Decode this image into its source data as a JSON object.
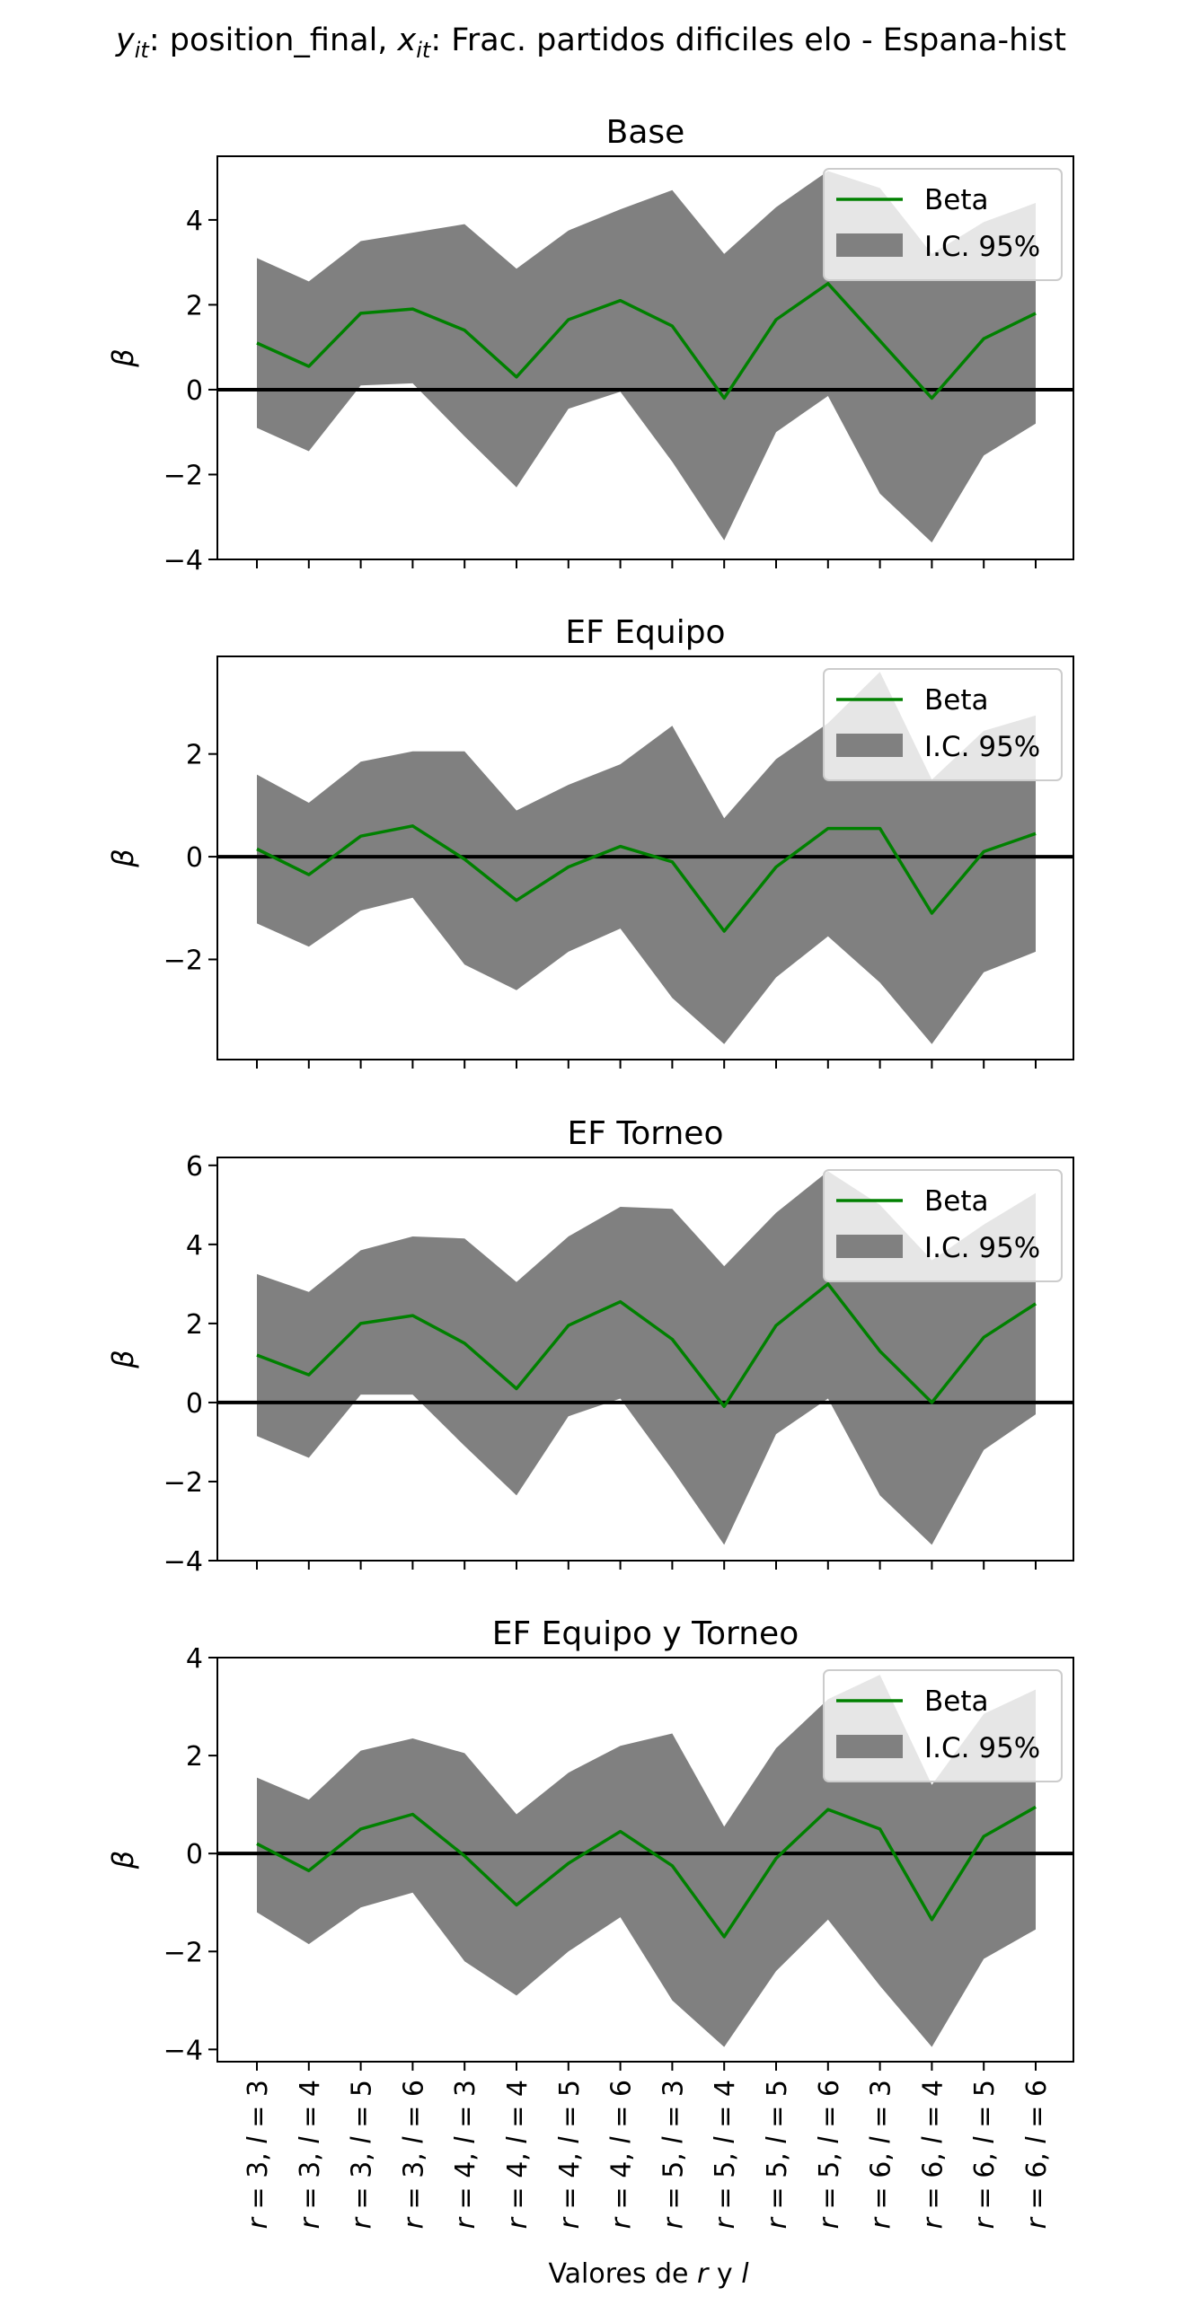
{
  "figure": {
    "suptitle": {
      "y_sym": "y",
      "y_sub": "it",
      "y_rest": ": position_final, ",
      "x_sym": "x",
      "x_sub": "it",
      "x_rest": ": Frac. partidos dificiles elo - Espana-hist"
    },
    "xlabel": {
      "prefix": "Valores de ",
      "r": "r",
      "middle": " y ",
      "l": "l"
    },
    "ylabel": "β",
    "legend": {
      "beta": "Beta",
      "ci": "I.C. 95%"
    },
    "colors": {
      "beta_line": "#008000",
      "ci_band": "#808080",
      "zero_line": "#000000"
    }
  },
  "chart_data": [
    {
      "type": "line",
      "title": "Base",
      "ylabel": "β",
      "xlabel": "Valores de r y l",
      "categories": [
        "r = 3, l = 3",
        "r = 3, l = 4",
        "r = 3, l = 5",
        "r = 3, l = 6",
        "r = 4, l = 3",
        "r = 4, l = 4",
        "r = 4, l = 5",
        "r = 4, l = 6",
        "r = 5, l = 3",
        "r = 5, l = 4",
        "r = 5, l = 5",
        "r = 5, l = 6",
        "r = 6, l = 3",
        "r = 6, l = 4",
        "r = 6, l = 5",
        "r = 6, l = 6"
      ],
      "ylim": [
        -4,
        5.5
      ],
      "yticks": [
        -4,
        -2,
        0,
        2,
        4
      ],
      "series": [
        {
          "name": "Beta",
          "values": [
            1.1,
            0.55,
            1.8,
            1.9,
            1.4,
            0.3,
            1.65,
            2.1,
            1.5,
            -0.2,
            1.65,
            2.5,
            1.15,
            -0.2,
            1.2,
            1.8
          ]
        },
        {
          "name": "I.C. 95%",
          "lower": [
            -0.9,
            -1.45,
            0.1,
            0.15,
            -1.1,
            -2.3,
            -0.45,
            -0.05,
            -1.7,
            -3.55,
            -1.0,
            -0.15,
            -2.45,
            -3.6,
            -1.55,
            -0.8
          ],
          "upper": [
            3.1,
            2.55,
            3.5,
            3.7,
            3.9,
            2.85,
            3.75,
            4.25,
            4.7,
            3.2,
            4.3,
            5.15,
            4.75,
            3.2,
            3.95,
            4.4
          ]
        }
      ],
      "legend_position": "upper right",
      "grid": false
    },
    {
      "type": "line",
      "title": "EF Equipo",
      "ylabel": "β",
      "xlabel": "Valores de r y l",
      "categories": [
        "r = 3, l = 3",
        "r = 3, l = 4",
        "r = 3, l = 5",
        "r = 3, l = 6",
        "r = 4, l = 3",
        "r = 4, l = 4",
        "r = 4, l = 5",
        "r = 4, l = 6",
        "r = 5, l = 3",
        "r = 5, l = 4",
        "r = 5, l = 5",
        "r = 5, l = 6",
        "r = 6, l = 3",
        "r = 6, l = 4",
        "r = 6, l = 5",
        "r = 6, l = 6"
      ],
      "ylim": [
        -3.95,
        3.9
      ],
      "yticks": [
        -2,
        0,
        2
      ],
      "series": [
        {
          "name": "Beta",
          "values": [
            0.15,
            -0.35,
            0.4,
            0.6,
            -0.05,
            -0.85,
            -0.2,
            0.2,
            -0.1,
            -1.45,
            -0.2,
            0.55,
            0.55,
            -1.1,
            0.1,
            0.45
          ]
        },
        {
          "name": "I.C. 95%",
          "lower": [
            -1.3,
            -1.75,
            -1.05,
            -0.8,
            -2.1,
            -2.6,
            -1.85,
            -1.4,
            -2.75,
            -3.65,
            -2.35,
            -1.55,
            -2.45,
            -3.65,
            -2.25,
            -1.85
          ],
          "upper": [
            1.6,
            1.05,
            1.85,
            2.05,
            2.05,
            0.9,
            1.4,
            1.8,
            2.55,
            0.75,
            1.9,
            2.6,
            3.6,
            1.5,
            2.45,
            2.75
          ]
        }
      ],
      "legend_position": "upper right",
      "grid": false
    },
    {
      "type": "line",
      "title": "EF Torneo",
      "ylabel": "β",
      "xlabel": "Valores de r y l",
      "categories": [
        "r = 3, l = 3",
        "r = 3, l = 4",
        "r = 3, l = 5",
        "r = 3, l = 6",
        "r = 4, l = 3",
        "r = 4, l = 4",
        "r = 4, l = 5",
        "r = 4, l = 6",
        "r = 5, l = 3",
        "r = 5, l = 4",
        "r = 5, l = 5",
        "r = 5, l = 6",
        "r = 6, l = 3",
        "r = 6, l = 4",
        "r = 6, l = 5",
        "r = 6, l = 6"
      ],
      "ylim": [
        -4,
        6.2
      ],
      "yticks": [
        -4,
        -2,
        0,
        2,
        4,
        6
      ],
      "series": [
        {
          "name": "Beta",
          "values": [
            1.2,
            0.7,
            2.0,
            2.2,
            1.5,
            0.35,
            1.95,
            2.55,
            1.6,
            -0.1,
            1.95,
            3.0,
            1.3,
            0.0,
            1.65,
            2.5
          ]
        },
        {
          "name": "I.C. 95%",
          "lower": [
            -0.85,
            -1.4,
            0.2,
            0.2,
            -1.1,
            -2.35,
            -0.35,
            0.1,
            -1.7,
            -3.6,
            -0.8,
            0.1,
            -2.35,
            -3.6,
            -1.2,
            -0.3
          ],
          "upper": [
            3.25,
            2.8,
            3.85,
            4.2,
            4.15,
            3.05,
            4.2,
            4.95,
            4.9,
            3.45,
            4.8,
            5.85,
            5.0,
            3.6,
            4.5,
            5.3
          ]
        }
      ],
      "legend_position": "upper right",
      "grid": false
    },
    {
      "type": "line",
      "title": "EF Equipo y Torneo",
      "ylabel": "β",
      "xlabel": "Valores de r y l",
      "categories": [
        "r = 3, l = 3",
        "r = 3, l = 4",
        "r = 3, l = 5",
        "r = 3, l = 6",
        "r = 4, l = 3",
        "r = 4, l = 4",
        "r = 4, l = 5",
        "r = 4, l = 6",
        "r = 5, l = 3",
        "r = 5, l = 4",
        "r = 5, l = 5",
        "r = 5, l = 6",
        "r = 6, l = 3",
        "r = 6, l = 4",
        "r = 6, l = 5",
        "r = 6, l = 6"
      ],
      "ylim": [
        -4.25,
        4.0
      ],
      "yticks": [
        -4,
        -2,
        0,
        2,
        4
      ],
      "series": [
        {
          "name": "Beta",
          "values": [
            0.2,
            -0.35,
            0.5,
            0.8,
            -0.05,
            -1.05,
            -0.2,
            0.45,
            -0.25,
            -1.7,
            -0.1,
            0.9,
            0.5,
            -1.35,
            0.35,
            0.95
          ]
        },
        {
          "name": "I.C. 95%",
          "lower": [
            -1.2,
            -1.85,
            -1.1,
            -0.8,
            -2.2,
            -2.9,
            -2.0,
            -1.3,
            -3.0,
            -3.95,
            -2.4,
            -1.35,
            -2.7,
            -3.95,
            -2.15,
            -1.55
          ],
          "upper": [
            1.55,
            1.1,
            2.1,
            2.35,
            2.05,
            0.8,
            1.65,
            2.2,
            2.45,
            0.55,
            2.15,
            3.15,
            3.65,
            1.4,
            2.85,
            3.35
          ]
        }
      ],
      "legend_position": "upper right",
      "grid": false
    }
  ]
}
